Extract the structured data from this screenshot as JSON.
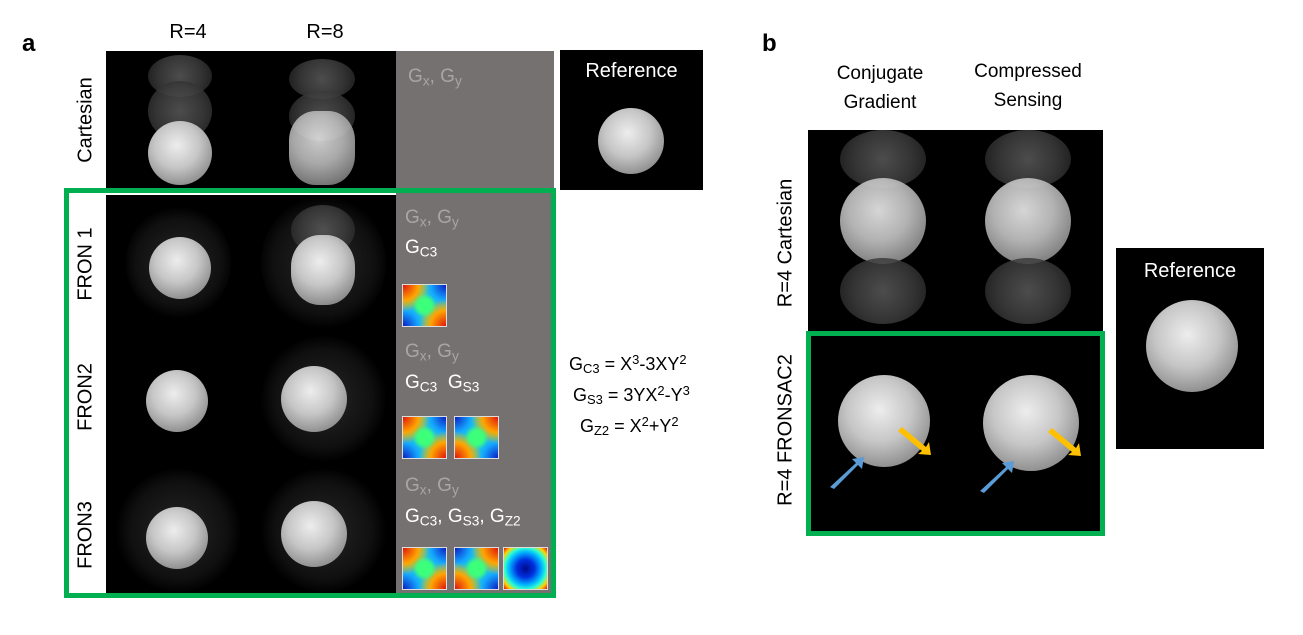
{
  "panel_a": {
    "letter": "a",
    "col_labels": [
      "R=4",
      "R=8"
    ],
    "row_labels": [
      "Cartesian",
      "FRON 1",
      "FRON2",
      "FRON3"
    ],
    "gradients": {
      "cartesian": {
        "dim": [
          "G",
          "x",
          ", G",
          "y"
        ]
      },
      "fron1": {
        "dim": [
          "G",
          "x",
          ", G",
          "y"
        ],
        "bright": [
          "G",
          "C3"
        ]
      },
      "fron2": {
        "dim": [
          "G",
          "x",
          ", G",
          "y"
        ],
        "bright": [
          "G",
          "C3",
          "G",
          "S3"
        ]
      },
      "fron3": {
        "dim": [
          "G",
          "x",
          ", G",
          "y"
        ],
        "bright": [
          "G",
          "C3",
          ", G",
          "S3",
          ", G",
          "Z2"
        ]
      }
    },
    "maps": {
      "fron1": [
        "GC3"
      ],
      "fron2": [
        "GC3",
        "GS3"
      ],
      "fron3": [
        "GC3",
        "GS3",
        "GZ2"
      ]
    },
    "reference_label": "Reference",
    "formulas": [
      {
        "lhs": "G",
        "lhs_sub": "C3",
        "rhs_parts": [
          "X",
          "3",
          "-3XY",
          "2"
        ]
      },
      {
        "lhs": "G",
        "lhs_sub": "S3",
        "rhs_parts": [
          "3YX",
          "2",
          "-Y",
          "3"
        ]
      },
      {
        "lhs": "G",
        "lhs_sub": "Z2",
        "rhs_parts": [
          "X",
          "2",
          "+Y",
          "2"
        ]
      }
    ]
  },
  "panel_b": {
    "letter": "b",
    "col_labels": [
      [
        "Conjugate",
        "Gradient"
      ],
      [
        "Compressed",
        "Sensing"
      ]
    ],
    "row_labels": [
      "R=4 Cartesian",
      "R=4 FRONSAC2"
    ],
    "reference_label": "Reference",
    "arrow_colors": {
      "blue": "#5b9bd5",
      "orange": "#ffc000"
    }
  },
  "colors": {
    "highlight_box": "#00b050",
    "gradient_panel": "#767171",
    "dim_text": "#a6a6a6"
  }
}
